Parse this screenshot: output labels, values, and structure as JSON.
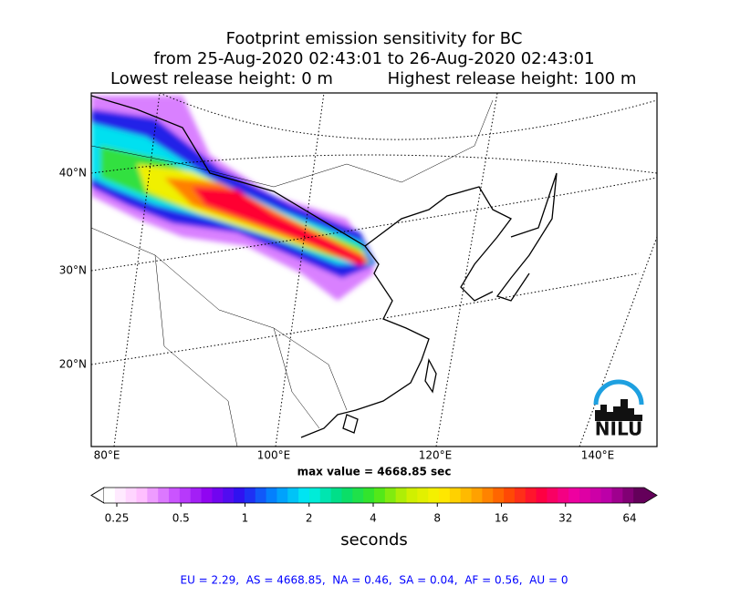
{
  "header": {
    "title": "Footprint emission sensitivity for BC",
    "period": "from 25-Aug-2020 02:43:01 to 26-Aug-2020 02:43:01",
    "lowest": "Lowest release height: 0 m",
    "highest": "Highest release height: 100 m"
  },
  "map": {
    "lat_labels": [
      "40°N",
      "30°N",
      "20°N"
    ],
    "lon_labels": [
      "80°E",
      "100°E",
      "120°E",
      "140°E"
    ],
    "logo": "NILU"
  },
  "max_value": "max value = 4668.85 sec",
  "colorbar": {
    "ticks": [
      "0.25",
      "0.5",
      "1",
      "2",
      "4",
      "8",
      "16",
      "32",
      "64"
    ],
    "label": "seconds"
  },
  "footer": "EU = 2.29,  AS = 4668.85,  NA = 0.46,  SA = 0.04,  AF = 0.56,  AU = 0"
}
